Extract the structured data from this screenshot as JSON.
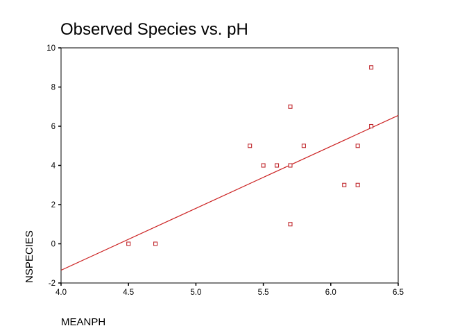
{
  "chart_data": {
    "type": "scatter",
    "title": "Observed Species vs. pH",
    "xlabel": "MEANPH",
    "ylabel": "NSPECIES",
    "xlim": [
      4.0,
      6.5
    ],
    "ylim": [
      -2,
      10
    ],
    "x_ticks": [
      "4.0",
      "4.5",
      "5.0",
      "5.5",
      "6.0",
      "6.5"
    ],
    "y_ticks": [
      "-2",
      "0",
      "2",
      "4",
      "6",
      "8",
      "10"
    ],
    "grid": false,
    "legend": "none",
    "series": [
      {
        "points": [
          {
            "x": 4.5,
            "y": 0
          },
          {
            "x": 4.7,
            "y": 0
          },
          {
            "x": 5.4,
            "y": 5
          },
          {
            "x": 5.5,
            "y": 4
          },
          {
            "x": 5.6,
            "y": 4
          },
          {
            "x": 5.7,
            "y": 7
          },
          {
            "x": 5.7,
            "y": 4
          },
          {
            "x": 5.7,
            "y": 1
          },
          {
            "x": 5.8,
            "y": 5
          },
          {
            "x": 6.1,
            "y": 3
          },
          {
            "x": 6.2,
            "y": 5
          },
          {
            "x": 6.2,
            "y": 3
          },
          {
            "x": 6.3,
            "y": 9
          },
          {
            "x": 6.3,
            "y": 6
          }
        ]
      }
    ],
    "fit_line": {
      "x": [
        4.0,
        6.5
      ],
      "y": [
        -1.35,
        6.55
      ]
    },
    "colors": {
      "marker": "#c0282d",
      "fit_line": "#cc2222",
      "axis": "#000000"
    }
  }
}
